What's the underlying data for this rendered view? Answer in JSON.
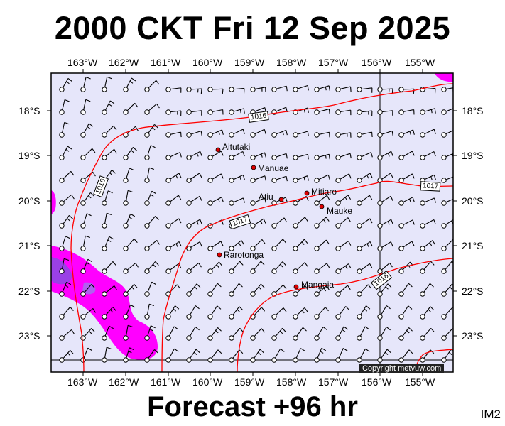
{
  "header": {
    "title": "2000 CKT Fri 12 Sep 2025"
  },
  "footer": {
    "forecast": "Forecast +96 hr",
    "model": "IM2"
  },
  "axes": {
    "lon_labels": [
      "163°W",
      "162°W",
      "161°W",
      "160°W",
      "159°W",
      "158°W",
      "157°W",
      "156°W",
      "155°W"
    ],
    "lat_labels": [
      "18°S",
      "19°S",
      "20°S",
      "21°S",
      "22°S",
      "23°S"
    ]
  },
  "places": [
    {
      "name": "Aitutaki"
    },
    {
      "name": "Manuae"
    },
    {
      "name": "Mitiaro"
    },
    {
      "name": "Atiu"
    },
    {
      "name": "Mauke"
    },
    {
      "name": "Rarotonga"
    },
    {
      "name": "Mangaia"
    }
  ],
  "isobars": [
    {
      "label": "1016"
    },
    {
      "label": "1016"
    },
    {
      "label": "1017"
    },
    {
      "label": "1017"
    },
    {
      "label": "1018"
    }
  ],
  "copyright": "Copyright metvuw.com",
  "colors": {
    "map_background": "#e6e6fa",
    "isobar": "#ff0000",
    "rain_light": "#ff00ff",
    "rain_heavy": "#8a2be2",
    "place_marker": "#dd0000"
  }
}
